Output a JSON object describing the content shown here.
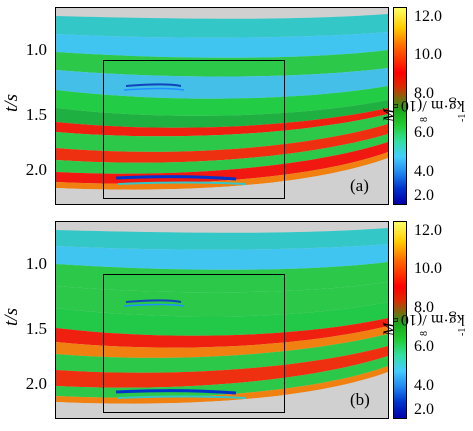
{
  "figure": {
    "y_axis_title": "t/s",
    "y_ticks": [
      "1.0",
      "1.5",
      "2.0"
    ],
    "colorbar": {
      "ticks": [
        "12.0",
        "10.0",
        "8.0",
        "6.0",
        "4.0",
        "2.0"
      ],
      "title_prefix": "M",
      "title_subscript": "u",
      "title_middle": "/(10",
      "title_exp": "8",
      "title_unit": "kg·m",
      "title_unit_exp1": "-1",
      "title_unit_mid": "·s",
      "title_unit_exp2": "-2",
      "title_suffix": ")",
      "colors": [
        "#ffff66",
        "#ffcc00",
        "#ff6600",
        "#ff0000",
        "#dd2a00",
        "#1aa81a",
        "#22cc33",
        "#33e0a0",
        "#44ccff",
        "#2288ee",
        "#0033cc",
        "#0000aa"
      ]
    },
    "panels": [
      {
        "label": "(a)",
        "variant": "a"
      },
      {
        "label": "(b)",
        "variant": "b"
      }
    ],
    "colors": {
      "background": "#d8d8d8",
      "teal": "#33c7c7",
      "cyan": "#40c4f0",
      "green": "#2cc84a",
      "red": "#f02010",
      "orange": "#f08010"
    }
  }
}
